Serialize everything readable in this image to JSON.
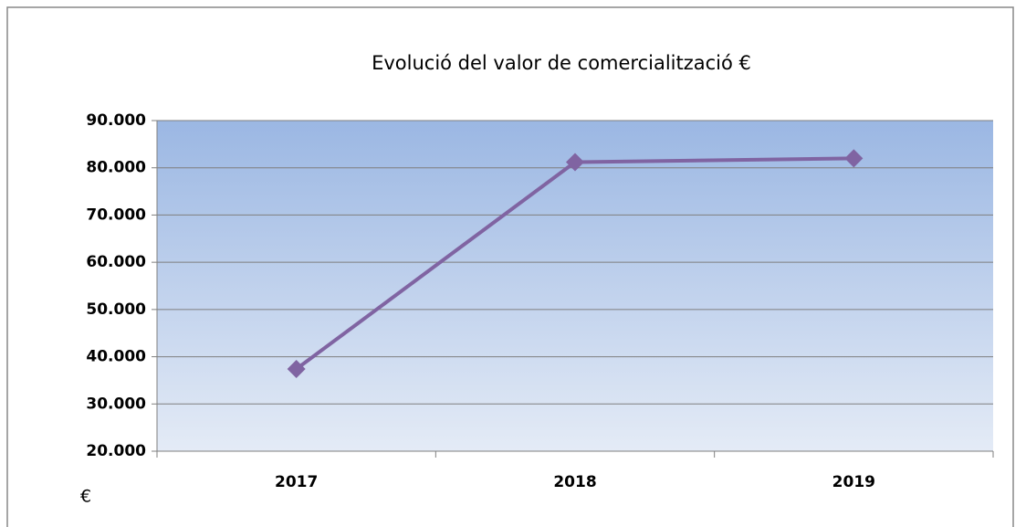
{
  "chart_data": {
    "type": "line",
    "title": "Evolució del valor de comercialització €",
    "y_label": "€",
    "categories": [
      "2017",
      "2018",
      "2019"
    ],
    "series": [
      {
        "name": "Valor de comercialització",
        "color": "#8064a2",
        "values": [
          37400,
          81200,
          82000
        ]
      }
    ],
    "ylim": [
      20000,
      90000
    ],
    "yticks": [
      {
        "value": 20000,
        "label": "20.000"
      },
      {
        "value": 30000,
        "label": "30.000"
      },
      {
        "value": 40000,
        "label": "40.000"
      },
      {
        "value": 50000,
        "label": "50.000"
      },
      {
        "value": 60000,
        "label": "60.000"
      },
      {
        "value": 70000,
        "label": "70.000"
      },
      {
        "value": 80000,
        "label": "80.000"
      },
      {
        "value": 90000,
        "label": "90.000"
      }
    ],
    "grid": true
  }
}
